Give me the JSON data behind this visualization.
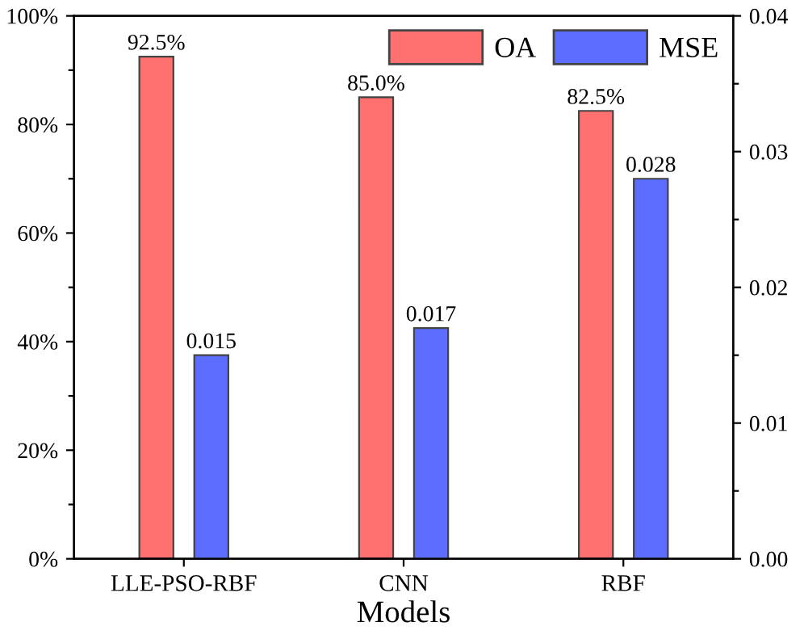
{
  "chart_data": {
    "type": "bar",
    "xlabel": "Models",
    "categories": [
      "LLE-PSO-RBF",
      "CNN",
      "RBF"
    ],
    "series": [
      {
        "name": "OA",
        "color": "#ff7070",
        "values": [
          92.5,
          85.0,
          82.5
        ],
        "value_labels": [
          "92.5%",
          "85.0%",
          "82.5%"
        ]
      },
      {
        "name": "MSE",
        "color": "#5d6dff",
        "axis": "y2",
        "values": [
          0.015,
          0.017,
          0.028
        ],
        "value_labels": [
          "0.015",
          "0.017",
          "0.028"
        ]
      }
    ],
    "ylim": [
      0,
      100
    ],
    "yticks": [
      {
        "value": 0,
        "label": "0%"
      },
      {
        "value": 10,
        "label": null
      },
      {
        "value": 20,
        "label": "20%"
      },
      {
        "value": 30,
        "label": null
      },
      {
        "value": 40,
        "label": "40%"
      },
      {
        "value": 50,
        "label": null
      },
      {
        "value": 60,
        "label": "60%"
      },
      {
        "value": 70,
        "label": null
      },
      {
        "value": 80,
        "label": "80%"
      },
      {
        "value": 90,
        "label": null
      },
      {
        "value": 100,
        "label": "100%"
      }
    ],
    "y2lim": [
      0,
      0.04
    ],
    "y2ticks": [
      {
        "value": 0,
        "label": "0.00"
      },
      {
        "value": 0.005,
        "label": null
      },
      {
        "value": 0.01,
        "label": "0.01"
      },
      {
        "value": 0.015,
        "label": null
      },
      {
        "value": 0.02,
        "label": "0.02"
      },
      {
        "value": 0.025,
        "label": null
      },
      {
        "value": 0.03,
        "label": "0.03"
      },
      {
        "value": 0.035,
        "label": null
      },
      {
        "value": 0.04,
        "label": "0.04"
      }
    ],
    "legend": "top right",
    "grid": false
  }
}
